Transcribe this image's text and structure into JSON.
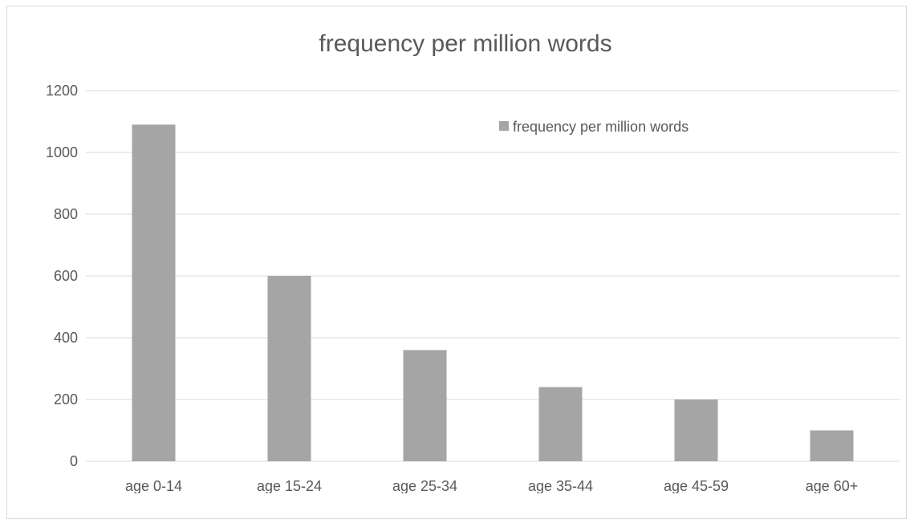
{
  "chart_data": {
    "type": "bar",
    "title": "frequency per million words",
    "categories": [
      "age 0-14",
      "age 15-24",
      "age 25-34",
      "age 35-44",
      "age 45-59",
      "age 60+"
    ],
    "series": [
      {
        "name": "frequency per million words",
        "values": [
          1090,
          600,
          360,
          240,
          200,
          100
        ]
      }
    ],
    "ylim": [
      0,
      1200
    ],
    "yticks": [
      0,
      200,
      400,
      600,
      800,
      1000,
      1200
    ],
    "xlabel": "",
    "ylabel": "",
    "grid": true,
    "legend_position": "top-right",
    "colors": {
      "bar": "#a5a5a5",
      "grid": "#d9d9d9",
      "text": "#595959"
    }
  }
}
